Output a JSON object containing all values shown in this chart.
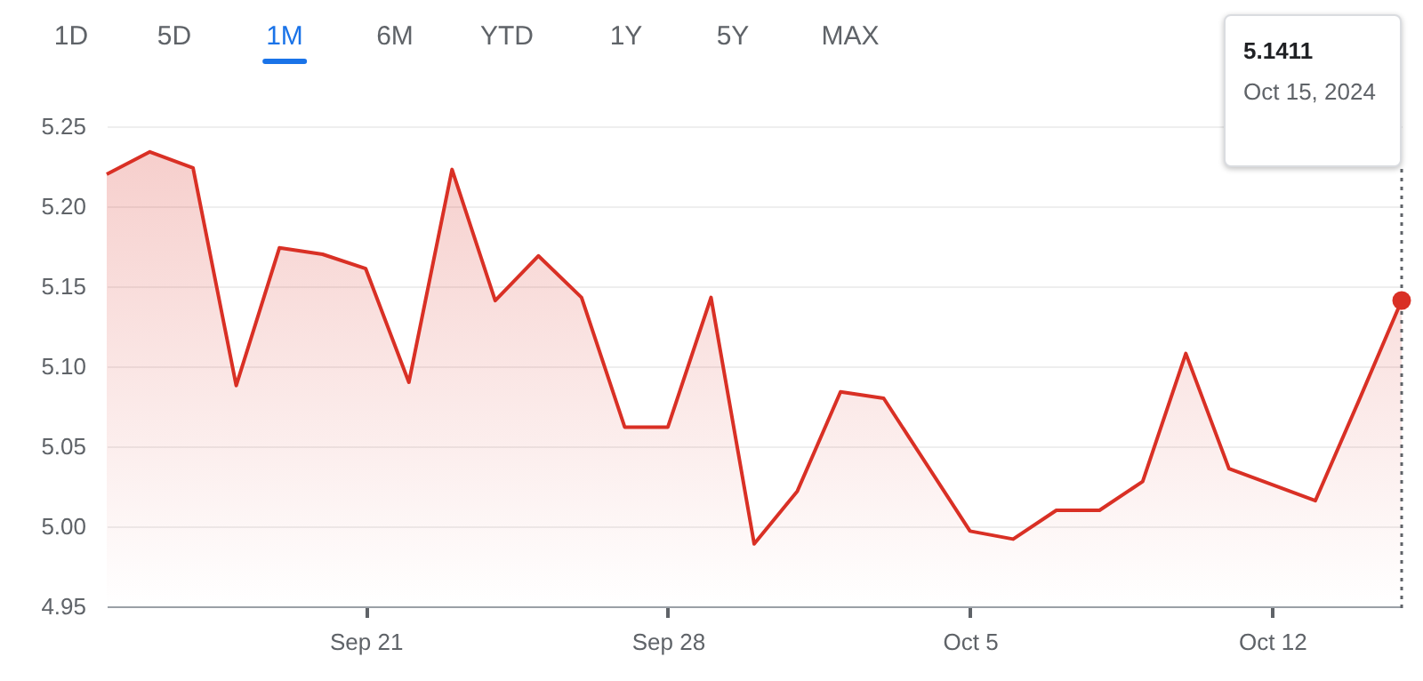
{
  "chart_data": {
    "type": "area",
    "x": [
      "2024-09-15",
      "2024-09-16",
      "2024-09-17",
      "2024-09-18",
      "2024-09-19",
      "2024-09-20",
      "2024-09-21",
      "2024-09-22",
      "2024-09-23",
      "2024-09-24",
      "2024-09-25",
      "2024-09-26",
      "2024-09-27",
      "2024-09-28",
      "2024-09-29",
      "2024-09-30",
      "2024-10-01",
      "2024-10-02",
      "2024-10-03",
      "2024-10-05",
      "2024-10-06",
      "2024-10-07",
      "2024-10-08",
      "2024-10-09",
      "2024-10-10",
      "2024-10-11",
      "2024-10-12",
      "2024-10-13",
      "2024-10-14",
      "2024-10-15"
    ],
    "series": [
      {
        "color": "#d93025",
        "values": [
          5.22,
          5.234,
          5.224,
          5.088,
          5.174,
          5.17,
          5.161,
          5.09,
          5.223,
          5.141,
          5.169,
          5.143,
          5.062,
          5.062,
          5.143,
          4.989,
          5.022,
          5.084,
          5.08,
          4.997,
          4.992,
          5.01,
          5.01,
          5.028,
          5.108,
          5.036,
          5.026,
          5.016,
          5.078,
          5.1411
        ]
      }
    ],
    "xlim": [
      "2024-09-15",
      "2024-10-15"
    ],
    "xticks": [
      {
        "value": "2024-09-21",
        "label": "Sep 21"
      },
      {
        "value": "2024-09-28",
        "label": "Sep 28"
      },
      {
        "value": "2024-10-05",
        "label": "Oct 5"
      },
      {
        "value": "2024-10-12",
        "label": "Oct 12"
      }
    ],
    "ylim": [
      4.95,
      5.25
    ],
    "yticks": [
      4.95,
      {
        "value": 5.0,
        "label": "5.00"
      },
      5.05,
      {
        "value": 5.1,
        "label": "5.10"
      },
      5.15,
      {
        "value": 5.2,
        "label": "5.20"
      },
      5.25
    ],
    "grid": "y",
    "marker": "none",
    "line_style": "solid",
    "ref_lines": [
      {
        "axis": "x",
        "value": "2024-10-15",
        "line_style": "dotted",
        "color": "#5f6368"
      }
    ],
    "annotations": [
      "1D",
      "5D",
      "1M",
      "6M",
      "YTD",
      "1Y",
      "5Y",
      "MAX",
      "5.1411",
      "Oct 15, 2024"
    ]
  }
}
